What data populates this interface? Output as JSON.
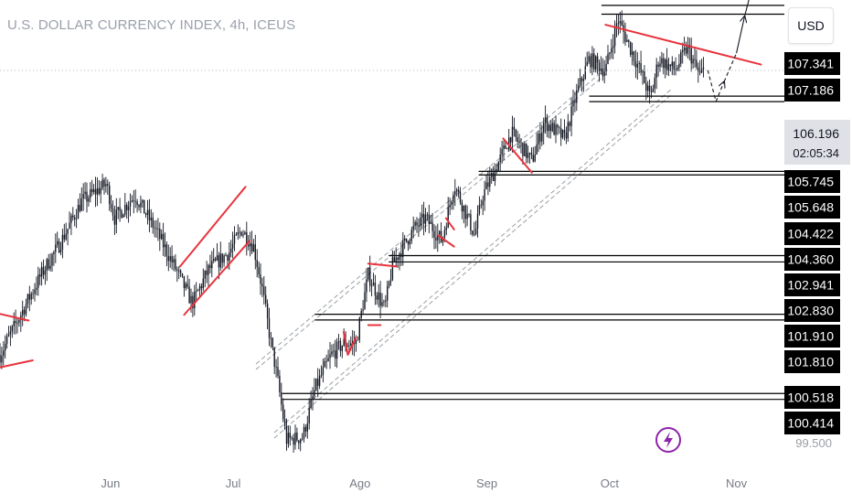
{
  "header": {
    "title": "U.S. DOLLAR CURRENCY INDEX, 4h, ICEUS"
  },
  "toolbar": {
    "currency_label": "USD"
  },
  "chart_data": {
    "type": "candlestick",
    "symbol": "U.S. DOLLAR CURRENCY INDEX",
    "interval": "4h",
    "exchange": "ICEUS",
    "x_ticks": [
      "Jun",
      "Jul",
      "Ago",
      "Sep",
      "Oct",
      "Nov"
    ],
    "ylim": [
      99.5,
      107.5
    ],
    "current_price": 106.196,
    "countdown": "02:05:34",
    "y_tick_plain": 99.5,
    "y_tick_plain_label": "99.500",
    "level_labels": [
      "107.341",
      "107.186",
      "105.745",
      "105.648",
      "104.422",
      "104.360",
      "102.941",
      "102.830",
      "101.910",
      "101.810",
      "100.518",
      "100.414"
    ],
    "horizontal_levels": [
      {
        "pair": [
          107.341,
          107.186
        ],
        "from": "2023-09-29"
      },
      {
        "pair": [
          105.745,
          105.648
        ],
        "from": "2023-09-26"
      },
      {
        "pair": [
          104.422,
          104.36
        ],
        "from": "2023-08-30"
      },
      {
        "pair": [
          102.941,
          102.83
        ],
        "from": "2023-08-08"
      },
      {
        "pair": [
          101.91,
          101.81
        ],
        "from": "2023-07-21"
      },
      {
        "pair": [
          100.518,
          100.414
        ],
        "from": "2023-07-13"
      }
    ],
    "price_path": [
      {
        "date": "2023-05-05",
        "v": 101.2
      },
      {
        "date": "2023-05-10",
        "v": 101.9
      },
      {
        "date": "2023-05-15",
        "v": 102.6
      },
      {
        "date": "2023-05-20",
        "v": 103.2
      },
      {
        "date": "2023-05-25",
        "v": 103.9
      },
      {
        "date": "2023-05-31",
        "v": 104.2
      },
      {
        "date": "2023-06-02",
        "v": 103.6
      },
      {
        "date": "2023-06-07",
        "v": 104.0
      },
      {
        "date": "2023-06-12",
        "v": 103.4
      },
      {
        "date": "2023-06-17",
        "v": 102.7
      },
      {
        "date": "2023-06-21",
        "v": 102.1
      },
      {
        "date": "2023-06-25",
        "v": 102.7
      },
      {
        "date": "2023-06-30",
        "v": 103.0
      },
      {
        "date": "2023-07-03",
        "v": 103.4
      },
      {
        "date": "2023-07-06",
        "v": 103.1
      },
      {
        "date": "2023-07-08",
        "v": 102.4
      },
      {
        "date": "2023-07-10",
        "v": 101.5
      },
      {
        "date": "2023-07-12",
        "v": 100.7
      },
      {
        "date": "2023-07-14",
        "v": 99.7
      },
      {
        "date": "2023-07-18",
        "v": 99.75
      },
      {
        "date": "2023-07-21",
        "v": 100.6
      },
      {
        "date": "2023-07-25",
        "v": 101.2
      },
      {
        "date": "2023-07-28",
        "v": 101.4
      },
      {
        "date": "2023-07-31",
        "v": 101.4
      },
      {
        "date": "2023-08-03",
        "v": 102.6
      },
      {
        "date": "2023-08-07",
        "v": 102.0
      },
      {
        "date": "2023-08-09",
        "v": 102.8
      },
      {
        "date": "2023-08-14",
        "v": 103.4
      },
      {
        "date": "2023-08-17",
        "v": 103.6
      },
      {
        "date": "2023-08-21",
        "v": 103.2
      },
      {
        "date": "2023-08-24",
        "v": 104.2
      },
      {
        "date": "2023-08-29",
        "v": 103.3
      },
      {
        "date": "2023-08-31",
        "v": 104.0
      },
      {
        "date": "2023-09-04",
        "v": 104.6
      },
      {
        "date": "2023-09-07",
        "v": 105.1
      },
      {
        "date": "2023-09-12",
        "v": 104.6
      },
      {
        "date": "2023-09-15",
        "v": 105.3
      },
      {
        "date": "2023-09-20",
        "v": 105.0
      },
      {
        "date": "2023-09-23",
        "v": 105.8
      },
      {
        "date": "2023-09-26",
        "v": 106.4
      },
      {
        "date": "2023-09-30",
        "v": 106.2
      },
      {
        "date": "2023-10-03",
        "v": 107.1
      },
      {
        "date": "2023-10-06",
        "v": 106.6
      },
      {
        "date": "2023-10-09",
        "v": 106.1
      },
      {
        "date": "2023-10-11",
        "v": 105.7
      },
      {
        "date": "2023-10-13",
        "v": 106.4
      },
      {
        "date": "2023-10-17",
        "v": 106.2
      },
      {
        "date": "2023-10-20",
        "v": 106.6
      },
      {
        "date": "2023-10-23",
        "v": 106.1
      },
      {
        "date": "2023-10-24",
        "v": 106.2
      }
    ],
    "projection_path": [
      {
        "date": "2023-10-25",
        "v": 106.2
      },
      {
        "date": "2023-10-27",
        "v": 105.65
      },
      {
        "date": "2023-10-29",
        "v": 106.0
      },
      {
        "date": "2023-11-01",
        "v": 106.5
      },
      {
        "date": "2023-11-03",
        "v": 107.15
      },
      {
        "date": "2023-11-05",
        "v": 107.7
      },
      {
        "date": "2023-11-07",
        "v": 109.0
      }
    ]
  },
  "colors": {
    "background": "#ffffff",
    "candle": "#131722",
    "drawing_red": "#e8333d",
    "level_line": "#000000",
    "channel": "#9aa0a6",
    "axis_text": "#787b86",
    "label_bg": "#000000",
    "label_text": "#ffffff",
    "current_price_bg": "#dfe1e6",
    "current_price_text": "#131722",
    "plain_tick_text": "#9aa0a6",
    "icon_purple": "#8e24aa"
  },
  "icons": {
    "alert_icon": "lightning-icon"
  }
}
